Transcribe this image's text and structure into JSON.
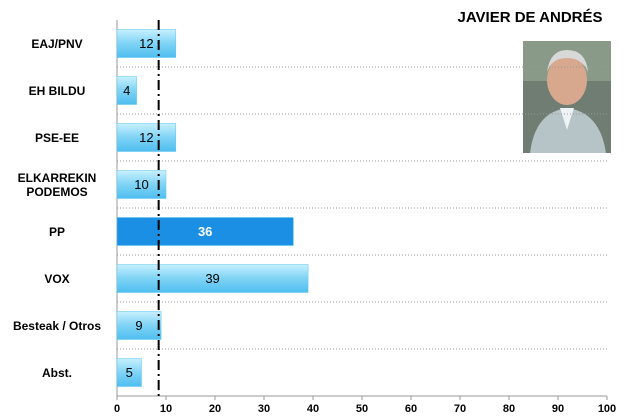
{
  "chart_data": {
    "type": "hbar",
    "title": "JAVIER DE ANDRÉS",
    "categories": [
      "EAJ/PNV",
      "EH BILDU",
      "PSE-EE",
      "ELKARREKIN PODEMOS",
      "PP",
      "VOX",
      "Besteak / Otros",
      "Abst."
    ],
    "values": [
      12,
      4,
      12,
      10,
      36,
      39,
      9,
      5
    ],
    "colors": [
      "#7fd3f5",
      "#7fd3f5",
      "#7fd3f5",
      "#7fd3f5",
      "#1a8fe3",
      "#7fd3f5",
      "#7fd3f5",
      "#7fd3f5"
    ],
    "label_colors": [
      "#000000",
      "#000000",
      "#000000",
      "#000000",
      "#ffffff",
      "#000000",
      "#000000",
      "#000000"
    ],
    "xlim": [
      0,
      100
    ],
    "xticks": [
      0,
      10,
      20,
      30,
      40,
      50,
      60,
      70,
      80,
      90,
      100
    ],
    "reference_line": 8.5
  }
}
